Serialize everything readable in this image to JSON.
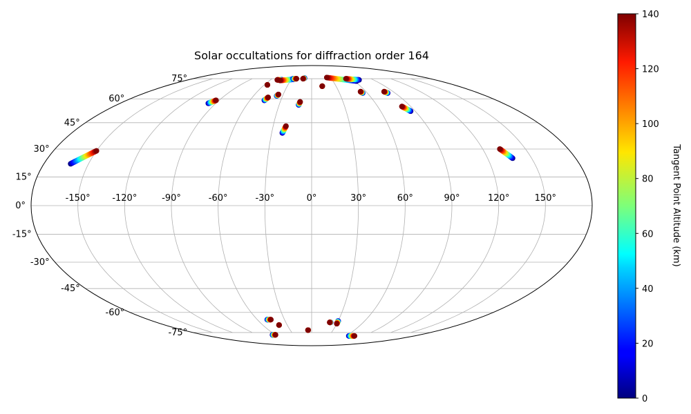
{
  "chart_data": {
    "type": "scatter",
    "projection": "mollweide",
    "title": "Solar occultations for diffraction order 164",
    "longitude_ticks": [
      -150,
      -120,
      -90,
      -60,
      -30,
      0,
      30,
      60,
      90,
      120,
      150
    ],
    "longitude_tick_labels": [
      "-150°",
      "-120°",
      "-90°",
      "-60°",
      "-30°",
      "0°",
      "30°",
      "60°",
      "90°",
      "120°",
      "150°"
    ],
    "latitude_ticks": [
      75,
      60,
      45,
      30,
      15,
      0,
      -15,
      -30,
      -45,
      -60,
      -75
    ],
    "latitude_tick_labels": [
      "75°",
      "60°",
      "45°",
      "30°",
      "15°",
      "0°",
      "-15°",
      "-30°",
      "-45°",
      "-60°",
      "-75°"
    ],
    "grid": true,
    "colorbar": {
      "label": "Tangent Point Altitude (km)",
      "colormap": "jet",
      "range": [
        0,
        140
      ],
      "ticks": [
        0,
        20,
        40,
        60,
        80,
        100,
        120,
        140
      ],
      "tick_labels": [
        "0",
        "20",
        "40",
        "60",
        "80",
        "100",
        "120",
        "140"
      ]
    },
    "altitude_range_km": [
      0,
      140
    ],
    "occultations": [
      {
        "lon_start": -162,
        "lat_start": 22,
        "lon_end": -150,
        "lat_end": 29
      },
      {
        "lon_start": -97,
        "lat_start": 57,
        "lon_end": -93,
        "lat_end": 59
      },
      {
        "lon_start": -56,
        "lat_start": 70,
        "lon_end": -56,
        "lat_end": 70
      },
      {
        "lon_start": -46,
        "lat_start": 59,
        "lon_end": -44,
        "lat_end": 61
      },
      {
        "lon_start": -36,
        "lat_start": 62,
        "lon_end": -35,
        "lat_end": 63
      },
      {
        "lon_start": -43,
        "lat_start": 74,
        "lon_end": -50,
        "lat_end": 74
      },
      {
        "lon_start": -27,
        "lat_start": 74.5,
        "lon_end": -45,
        "lat_end": 73.5
      },
      {
        "lon_start": -28,
        "lat_start": 75,
        "lon_end": -23,
        "lat_end": 75
      },
      {
        "lon_start": -22,
        "lat_start": 39,
        "lon_end": -20,
        "lat_end": 43
      },
      {
        "lon_start": -12,
        "lat_start": 56,
        "lon_end": -11,
        "lat_end": 58
      },
      {
        "lon_start": -11,
        "lat_start": 75.5,
        "lon_end": -13,
        "lat_end": 75
      },
      {
        "lon_start": 13,
        "lat_start": 69,
        "lon_end": 13,
        "lat_end": 69
      },
      {
        "lon_start": 63,
        "lat_start": 73,
        "lon_end": 24,
        "lat_end": 76
      },
      {
        "lon_start": 69,
        "lat_start": 74,
        "lon_end": 52,
        "lat_end": 75
      },
      {
        "lon_start": 55,
        "lat_start": 64,
        "lon_end": 54,
        "lat_end": 65
      },
      {
        "lon_start": 82,
        "lat_start": 64,
        "lon_end": 80,
        "lat_end": 65
      },
      {
        "lon_start": 86,
        "lat_start": 52,
        "lon_end": 82,
        "lat_end": 55
      },
      {
        "lon_start": 137,
        "lat_start": 25,
        "lon_end": 132,
        "lat_end": 30
      },
      {
        "lon_start": -49,
        "lat_start": -65,
        "lon_end": -45,
        "lat_end": -65
      },
      {
        "lon_start": -40,
        "lat_start": -69,
        "lon_end": -40,
        "lat_end": -69
      },
      {
        "lon_start": -5,
        "lat_start": -73,
        "lon_end": -5,
        "lat_end": -73
      },
      {
        "lon_start": -65,
        "lat_start": -77,
        "lon_end": -60,
        "lat_end": -77
      },
      {
        "lon_start": 22,
        "lat_start": -67,
        "lon_end": 21,
        "lat_end": -67
      },
      {
        "lon_start": 30,
        "lat_start": -66,
        "lon_end": 30,
        "lat_end": -68
      },
      {
        "lon_start": 65,
        "lat_start": -78,
        "lon_end": 75,
        "lat_end": -78
      }
    ]
  }
}
